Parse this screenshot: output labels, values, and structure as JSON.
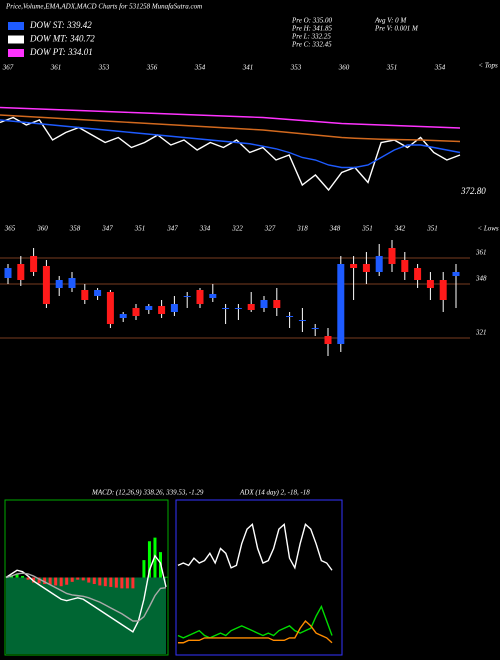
{
  "header": {
    "title": "Price,Volume,EMA,ADX,MACD Charts for 531258 MunafaSutra.com",
    "legend": [
      {
        "label": "DOW ST: 339.42",
        "color": "#1e5bff"
      },
      {
        "label": "DOW MT: 340.72",
        "color": "#ffffff"
      },
      {
        "label": "DOW PT: 334.01",
        "color": "#ff33ff"
      }
    ],
    "info": [
      "Pre  O: 335.00",
      "Pre  H: 341.85",
      "Pre  L: 332.25",
      "Pre  C: 332.45",
      "Avg V: 0  M",
      "Pre  V: 0.001 M"
    ],
    "tops": [
      "367",
      "361",
      "353",
      "356",
      "354",
      "341",
      "353",
      "360",
      "351",
      "354"
    ],
    "tops_label": "< Tops",
    "last_price": "372.80",
    "lows": [
      "365",
      "360",
      "358",
      "347",
      "351",
      "347",
      "334",
      "322",
      "327",
      "318",
      "348",
      "351",
      "342",
      "351"
    ],
    "lows_label": "< Lows",
    "macd_label": "MACD: (12,26,9) 338.26, 339.53, -1.29",
    "adx_label": "ADX (14 day) 2, -18, -18"
  },
  "chart_data": [
    {
      "type": "line",
      "ylim": [
        320,
        360
      ],
      "series": [
        {
          "name": "Price",
          "color": "#ffffff",
          "values": [
            351,
            353,
            350,
            352,
            344,
            347,
            349,
            346,
            343,
            345,
            341,
            343,
            346,
            342,
            344,
            340,
            343,
            341,
            344,
            339,
            341,
            336,
            338,
            326,
            330,
            324,
            331,
            333,
            327,
            343,
            344,
            341,
            345,
            339,
            336,
            338
          ]
        },
        {
          "name": "ST",
          "color": "#1e5bff",
          "values": [
            352,
            351.5,
            351,
            350.5,
            350,
            349.5,
            349,
            348.5,
            348,
            347.5,
            347,
            346.5,
            346,
            345.5,
            345,
            344.5,
            344,
            343.5,
            343,
            342.5,
            341.5,
            340.5,
            339,
            337,
            336,
            334,
            333,
            333,
            334,
            337,
            340,
            342,
            342,
            341,
            340,
            339
          ]
        },
        {
          "name": "MT",
          "color": "#d2691e",
          "values": [
            354,
            353.7,
            353.4,
            353.1,
            352.8,
            352.5,
            352.2,
            351.9,
            351.6,
            351.3,
            351,
            350.7,
            350.4,
            350.1,
            349.8,
            349.5,
            349.2,
            348.9,
            348.6,
            348.3,
            348,
            347.5,
            347,
            346.5,
            346,
            345.5,
            345,
            344.7,
            344.5,
            344.3,
            344.2,
            344.1,
            344,
            343.8,
            343.6,
            343.4
          ]
        },
        {
          "name": "PT",
          "color": "#ff33ff",
          "values": [
            357,
            356.8,
            356.6,
            356.4,
            356.2,
            356,
            355.8,
            355.6,
            355.4,
            355.2,
            355,
            354.8,
            354.6,
            354.4,
            354.2,
            354,
            353.8,
            353.6,
            353.4,
            353.2,
            353,
            352.6,
            352.2,
            351.8,
            351.4,
            351,
            350.6,
            350.4,
            350.2,
            350,
            349.8,
            349.6,
            349.4,
            349.2,
            349,
            348.8
          ]
        }
      ]
    },
    {
      "type": "candlestick",
      "ylim": [
        300,
        380
      ],
      "yticks": [
        361,
        348,
        321
      ],
      "up_color": "#1e5bff",
      "down_color": "#ff1a1a",
      "open": [
        351,
        358,
        362,
        357,
        346,
        346,
        345,
        342,
        344,
        331,
        336,
        335,
        337,
        334,
        342,
        345,
        341,
        336,
        336,
        338,
        336,
        340,
        332,
        330,
        326,
        322,
        318,
        358,
        358,
        354,
        366,
        360,
        356,
        350,
        350,
        352
      ],
      "close": [
        356,
        350,
        354,
        338,
        350,
        351,
        340,
        345,
        328,
        333,
        332,
        337,
        333,
        338,
        342,
        338,
        343,
        336,
        336,
        335,
        340,
        336,
        332,
        330,
        326,
        318,
        358,
        356,
        354,
        362,
        358,
        354,
        350,
        346,
        340,
        354
      ],
      "high": [
        358,
        362,
        366,
        360,
        352,
        354,
        348,
        346,
        345,
        334,
        338,
        338,
        340,
        342,
        344,
        346,
        348,
        338,
        338,
        344,
        342,
        346,
        334,
        336,
        328,
        326,
        362,
        362,
        364,
        368,
        370,
        364,
        358,
        354,
        354,
        358
      ],
      "low": [
        348,
        347,
        352,
        336,
        342,
        344,
        338,
        340,
        326,
        329,
        330,
        333,
        331,
        332,
        336,
        336,
        339,
        328,
        330,
        334,
        334,
        332,
        326,
        324,
        322,
        312,
        314,
        340,
        348,
        352,
        354,
        350,
        346,
        340,
        334,
        336
      ]
    },
    {
      "type": "macd",
      "ylim": [
        -10,
        10
      ],
      "series": [
        {
          "name": "MACD",
          "color": "#ffffff",
          "values": [
            0,
            0.5,
            1,
            0.8,
            0.2,
            -0.5,
            -1,
            -1.5,
            -2,
            -2.5,
            -3,
            -3.2,
            -3,
            -2.8,
            -3,
            -3.5,
            -4,
            -4.5,
            -5,
            -5.5,
            -6,
            -6.5,
            -7,
            -7.5,
            -6,
            -3,
            1,
            3,
            2,
            -1.3
          ]
        },
        {
          "name": "Signal",
          "color": "#aaaaaa",
          "values": [
            0,
            0.2,
            0.5,
            0.6,
            0.5,
            0.2,
            -0.2,
            -0.6,
            -1,
            -1.4,
            -1.8,
            -2.2,
            -2.4,
            -2.5,
            -2.6,
            -2.8,
            -3.1,
            -3.4,
            -3.8,
            -4.2,
            -4.6,
            -5,
            -5.5,
            -6,
            -6,
            -5.4,
            -4,
            -2.5,
            -1.5,
            -1.4
          ]
        },
        {
          "name": "Histogram",
          "color": "#ff3030",
          "values": [
            0,
            0.3,
            0.5,
            0.2,
            -0.3,
            -0.7,
            -0.8,
            -0.9,
            -1,
            -1.1,
            -1.2,
            -1,
            -0.6,
            -0.3,
            -0.4,
            -0.7,
            -0.9,
            -1.1,
            -1.2,
            -1.3,
            -1.4,
            -1.5,
            -1.5,
            -1.5,
            0,
            2.4,
            5,
            5.5,
            3.5,
            0.1
          ]
        }
      ]
    },
    {
      "type": "adx",
      "ylim": [
        0,
        60
      ],
      "series": [
        {
          "name": "+DI",
          "color": "#ffffff",
          "values": [
            35,
            36,
            35,
            38,
            36,
            37,
            40,
            36,
            42,
            40,
            34,
            35,
            44,
            50,
            52,
            42,
            36,
            37,
            42,
            50,
            52,
            38,
            34,
            44,
            52,
            50,
            44,
            37,
            36,
            33
          ]
        },
        {
          "name": "-DI",
          "color": "#00dd00",
          "values": [
            6,
            5,
            6,
            7,
            8,
            6,
            5,
            6,
            7,
            6,
            8,
            9,
            10,
            9,
            8,
            7,
            6,
            7,
            6,
            8,
            9,
            10,
            8,
            7,
            8,
            9,
            14,
            18,
            12,
            6
          ]
        },
        {
          "name": "ADX",
          "color": "#ff8c00",
          "values": [
            3,
            3,
            4,
            4,
            4,
            5,
            5,
            5,
            5,
            5,
            5,
            5,
            5,
            5,
            5,
            5,
            5,
            5,
            4,
            4,
            4,
            5,
            5,
            9,
            12,
            10,
            7,
            6,
            5,
            3
          ]
        }
      ]
    }
  ]
}
